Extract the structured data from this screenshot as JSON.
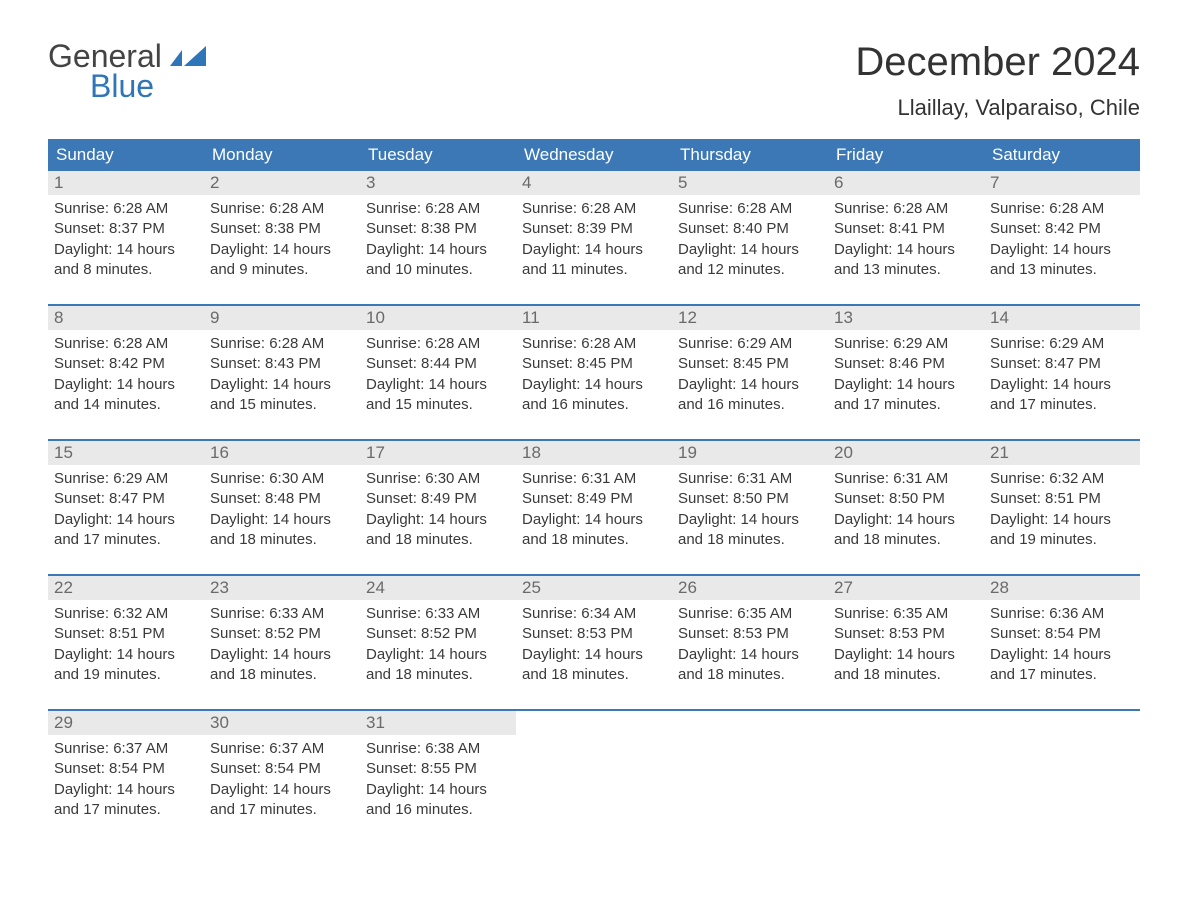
{
  "logo": {
    "text_general": "General",
    "text_blue": "Blue"
  },
  "title": "December 2024",
  "location": "Llaillay, Valparaiso, Chile",
  "colors": {
    "header_bg": "#3b78b5",
    "header_text": "#ffffff",
    "daynum_bg": "#e9e9e9",
    "daynum_text": "#6a6a6a",
    "body_text": "#3a3a3a",
    "week_border": "#3b78b5",
    "logo_blue": "#2f76b8"
  },
  "day_headers": [
    "Sunday",
    "Monday",
    "Tuesday",
    "Wednesday",
    "Thursday",
    "Friday",
    "Saturday"
  ],
  "weeks": [
    [
      {
        "n": "1",
        "sunrise": "6:28 AM",
        "sunset": "8:37 PM",
        "day_h": "14",
        "day_m": "8"
      },
      {
        "n": "2",
        "sunrise": "6:28 AM",
        "sunset": "8:38 PM",
        "day_h": "14",
        "day_m": "9"
      },
      {
        "n": "3",
        "sunrise": "6:28 AM",
        "sunset": "8:38 PM",
        "day_h": "14",
        "day_m": "10"
      },
      {
        "n": "4",
        "sunrise": "6:28 AM",
        "sunset": "8:39 PM",
        "day_h": "14",
        "day_m": "11"
      },
      {
        "n": "5",
        "sunrise": "6:28 AM",
        "sunset": "8:40 PM",
        "day_h": "14",
        "day_m": "12"
      },
      {
        "n": "6",
        "sunrise": "6:28 AM",
        "sunset": "8:41 PM",
        "day_h": "14",
        "day_m": "13"
      },
      {
        "n": "7",
        "sunrise": "6:28 AM",
        "sunset": "8:42 PM",
        "day_h": "14",
        "day_m": "13"
      }
    ],
    [
      {
        "n": "8",
        "sunrise": "6:28 AM",
        "sunset": "8:42 PM",
        "day_h": "14",
        "day_m": "14"
      },
      {
        "n": "9",
        "sunrise": "6:28 AM",
        "sunset": "8:43 PM",
        "day_h": "14",
        "day_m": "15"
      },
      {
        "n": "10",
        "sunrise": "6:28 AM",
        "sunset": "8:44 PM",
        "day_h": "14",
        "day_m": "15"
      },
      {
        "n": "11",
        "sunrise": "6:28 AM",
        "sunset": "8:45 PM",
        "day_h": "14",
        "day_m": "16"
      },
      {
        "n": "12",
        "sunrise": "6:29 AM",
        "sunset": "8:45 PM",
        "day_h": "14",
        "day_m": "16"
      },
      {
        "n": "13",
        "sunrise": "6:29 AM",
        "sunset": "8:46 PM",
        "day_h": "14",
        "day_m": "17"
      },
      {
        "n": "14",
        "sunrise": "6:29 AM",
        "sunset": "8:47 PM",
        "day_h": "14",
        "day_m": "17"
      }
    ],
    [
      {
        "n": "15",
        "sunrise": "6:29 AM",
        "sunset": "8:47 PM",
        "day_h": "14",
        "day_m": "17"
      },
      {
        "n": "16",
        "sunrise": "6:30 AM",
        "sunset": "8:48 PM",
        "day_h": "14",
        "day_m": "18"
      },
      {
        "n": "17",
        "sunrise": "6:30 AM",
        "sunset": "8:49 PM",
        "day_h": "14",
        "day_m": "18"
      },
      {
        "n": "18",
        "sunrise": "6:31 AM",
        "sunset": "8:49 PM",
        "day_h": "14",
        "day_m": "18"
      },
      {
        "n": "19",
        "sunrise": "6:31 AM",
        "sunset": "8:50 PM",
        "day_h": "14",
        "day_m": "18"
      },
      {
        "n": "20",
        "sunrise": "6:31 AM",
        "sunset": "8:50 PM",
        "day_h": "14",
        "day_m": "18"
      },
      {
        "n": "21",
        "sunrise": "6:32 AM",
        "sunset": "8:51 PM",
        "day_h": "14",
        "day_m": "19"
      }
    ],
    [
      {
        "n": "22",
        "sunrise": "6:32 AM",
        "sunset": "8:51 PM",
        "day_h": "14",
        "day_m": "19"
      },
      {
        "n": "23",
        "sunrise": "6:33 AM",
        "sunset": "8:52 PM",
        "day_h": "14",
        "day_m": "18"
      },
      {
        "n": "24",
        "sunrise": "6:33 AM",
        "sunset": "8:52 PM",
        "day_h": "14",
        "day_m": "18"
      },
      {
        "n": "25",
        "sunrise": "6:34 AM",
        "sunset": "8:53 PM",
        "day_h": "14",
        "day_m": "18"
      },
      {
        "n": "26",
        "sunrise": "6:35 AM",
        "sunset": "8:53 PM",
        "day_h": "14",
        "day_m": "18"
      },
      {
        "n": "27",
        "sunrise": "6:35 AM",
        "sunset": "8:53 PM",
        "day_h": "14",
        "day_m": "18"
      },
      {
        "n": "28",
        "sunrise": "6:36 AM",
        "sunset": "8:54 PM",
        "day_h": "14",
        "day_m": "17"
      }
    ],
    [
      {
        "n": "29",
        "sunrise": "6:37 AM",
        "sunset": "8:54 PM",
        "day_h": "14",
        "day_m": "17"
      },
      {
        "n": "30",
        "sunrise": "6:37 AM",
        "sunset": "8:54 PM",
        "day_h": "14",
        "day_m": "17"
      },
      {
        "n": "31",
        "sunrise": "6:38 AM",
        "sunset": "8:55 PM",
        "day_h": "14",
        "day_m": "16"
      },
      null,
      null,
      null,
      null
    ]
  ],
  "labels": {
    "sunrise_prefix": "Sunrise: ",
    "sunset_prefix": "Sunset: ",
    "daylight_prefix": "Daylight: ",
    "hours_word": " hours",
    "and_word": "and ",
    "minutes_word": " minutes."
  }
}
